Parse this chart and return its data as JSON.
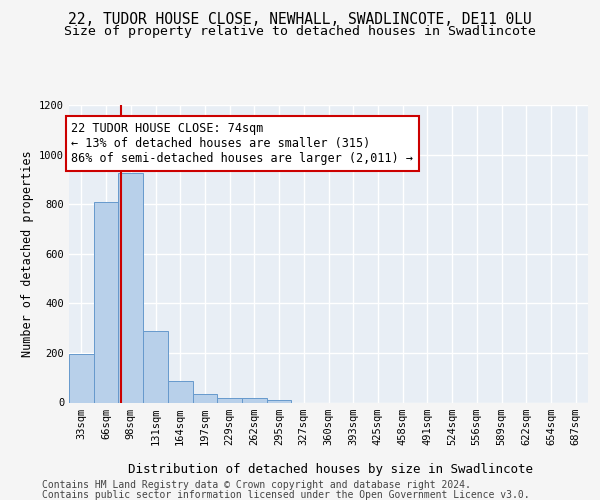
{
  "title_line1": "22, TUDOR HOUSE CLOSE, NEWHALL, SWADLINCOTE, DE11 0LU",
  "title_line2": "Size of property relative to detached houses in Swadlincote",
  "xlabel": "Distribution of detached houses by size in Swadlincote",
  "ylabel": "Number of detached properties",
  "bar_labels": [
    "33sqm",
    "66sqm",
    "98sqm",
    "131sqm",
    "164sqm",
    "197sqm",
    "229sqm",
    "262sqm",
    "295sqm",
    "327sqm",
    "360sqm",
    "393sqm",
    "425sqm",
    "458sqm",
    "491sqm",
    "524sqm",
    "556sqm",
    "589sqm",
    "622sqm",
    "654sqm",
    "687sqm"
  ],
  "bar_values": [
    196,
    810,
    925,
    290,
    85,
    35,
    20,
    17,
    12,
    0,
    0,
    0,
    0,
    0,
    0,
    0,
    0,
    0,
    0,
    0,
    0
  ],
  "bar_color": "#b8d0ea",
  "bar_edge_color": "#6699cc",
  "vline_x": 1.62,
  "vline_color": "#cc0000",
  "annotation_text": "22 TUDOR HOUSE CLOSE: 74sqm\n← 13% of detached houses are smaller (315)\n86% of semi-detached houses are larger (2,011) →",
  "annotation_box_color": "#ffffff",
  "annotation_box_edge_color": "#cc0000",
  "ylim": [
    0,
    1200
  ],
  "yticks": [
    0,
    200,
    400,
    600,
    800,
    1000,
    1200
  ],
  "plot_bg_color": "#e8eef5",
  "fig_bg_color": "#f5f5f5",
  "grid_color": "#ffffff",
  "footer_line1": "Contains HM Land Registry data © Crown copyright and database right 2024.",
  "footer_line2": "Contains public sector information licensed under the Open Government Licence v3.0.",
  "title_fontsize": 10.5,
  "subtitle_fontsize": 9.5,
  "ylabel_fontsize": 8.5,
  "xlabel_fontsize": 9,
  "tick_fontsize": 7.5,
  "annotation_fontsize": 8.5,
  "footer_fontsize": 7
}
